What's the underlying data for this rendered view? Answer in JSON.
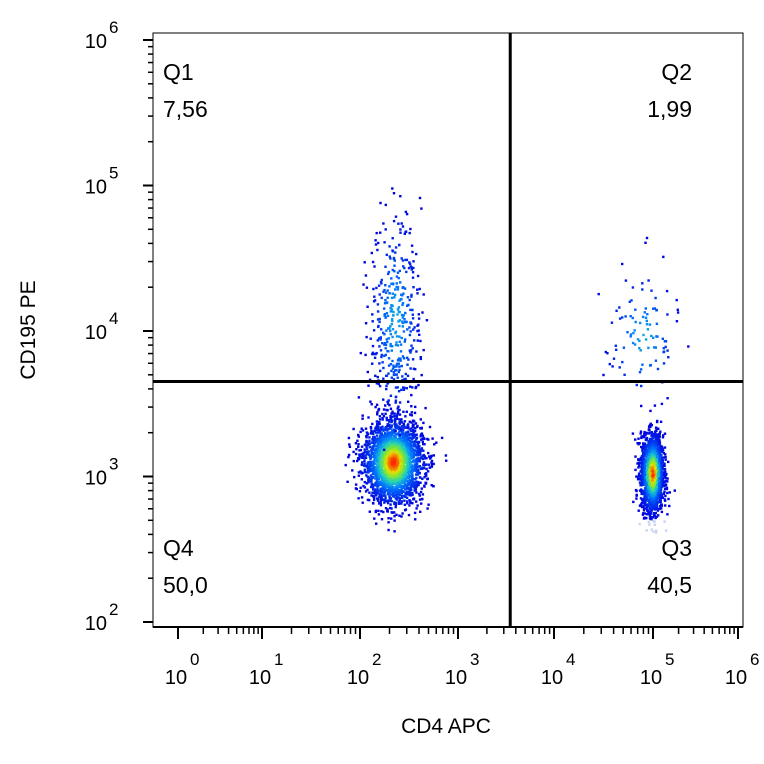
{
  "chart_data": {
    "type": "scatter",
    "subtype": "flow-cytometry-density-dotplot",
    "xlabel": "CD4 APC",
    "ylabel": "CD195 PE",
    "x_scale": "biexponential-log",
    "y_scale": "log",
    "xlim": [
      0.3,
      1000000
    ],
    "ylim": [
      60,
      1000000
    ],
    "x_ticks": [
      {
        "base": "10",
        "exp": "0",
        "value": 1
      },
      {
        "base": "10",
        "exp": "1",
        "value": 10
      },
      {
        "base": "10",
        "exp": "2",
        "value": 100
      },
      {
        "base": "10",
        "exp": "3",
        "value": 1000
      },
      {
        "base": "10",
        "exp": "4",
        "value": 10000
      },
      {
        "base": "10",
        "exp": "5",
        "value": 100000
      },
      {
        "base": "10",
        "exp": "6",
        "value": 1000000
      }
    ],
    "y_ticks": [
      {
        "base": "10",
        "exp": "2",
        "value": 100
      },
      {
        "base": "10",
        "exp": "3",
        "value": 1000
      },
      {
        "base": "10",
        "exp": "4",
        "value": 10000
      },
      {
        "base": "10",
        "exp": "5",
        "value": 100000
      },
      {
        "base": "10",
        "exp": "6",
        "value": 1000000
      }
    ],
    "gate": {
      "x": 3500,
      "y": 4500
    },
    "quadrants": [
      {
        "name": "Q1",
        "value": "7,56",
        "position": "top-left"
      },
      {
        "name": "Q2",
        "value": "1,99",
        "position": "top-right"
      },
      {
        "name": "Q3",
        "value": "40,5",
        "position": "bottom-right"
      },
      {
        "name": "Q4",
        "value": "50,0",
        "position": "bottom-left"
      }
    ],
    "populations": [
      {
        "label": "CD4-negative cluster",
        "center_x": 220,
        "center_y": 1250,
        "spread_x": 0.15,
        "spread_y": 0.14,
        "fraction": 0.5,
        "color_scale": "density"
      },
      {
        "label": "CD4-negative CD195+ tail",
        "center_x": 230,
        "center_y": 12000,
        "spread_x": 0.13,
        "spread_y": 0.35,
        "fraction": 0.0756,
        "color_scale": "density"
      },
      {
        "label": "CD4-positive cluster",
        "center_x": 100000,
        "center_y": 1050,
        "spread_x": 0.06,
        "spread_y": 0.13,
        "fraction": 0.405,
        "color_scale": "density"
      },
      {
        "label": "CD4-positive CD195+ tail",
        "center_x": 80000,
        "center_y": 9000,
        "spread_x": 0.2,
        "spread_y": 0.25,
        "fraction": 0.0199,
        "color_scale": "density"
      }
    ],
    "grid": false,
    "colors": {
      "low": "#0000dd",
      "mid": "#20d0c0",
      "high_mid": "#e0e000",
      "high": "#ff2000",
      "faded": "#c8d4f0",
      "gate_line": "#000000",
      "frame": "#000000"
    }
  }
}
